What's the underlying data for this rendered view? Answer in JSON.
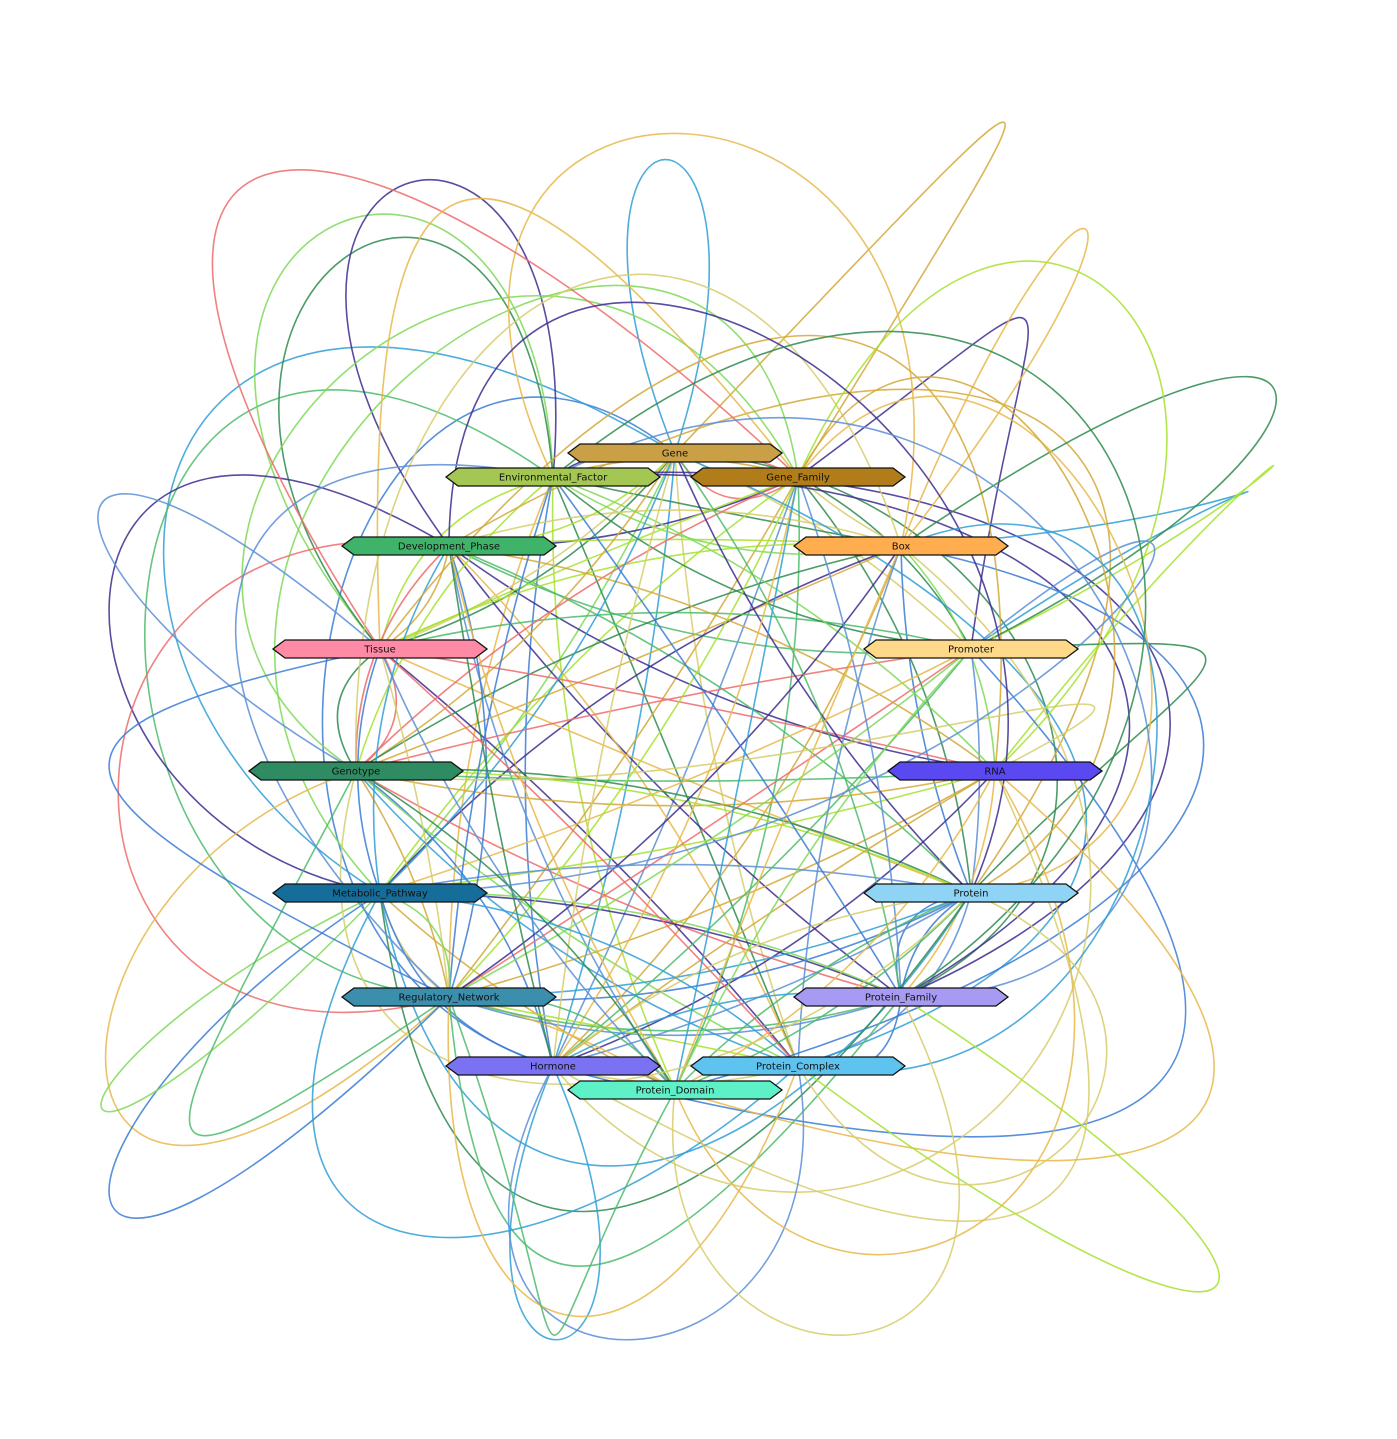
{
  "diagram": {
    "type": "network-graph",
    "node_shape": "hexagon",
    "nodes": [
      {
        "id": "gene",
        "label": "Gene",
        "color": "#c9a046"
      },
      {
        "id": "environmental_factor",
        "label": "Environmental_Factor",
        "color": "#a3c752"
      },
      {
        "id": "gene_family",
        "label": "Gene_Family",
        "color": "#b07d1a"
      },
      {
        "id": "development_phase",
        "label": "Development_Phase",
        "color": "#3fb36a"
      },
      {
        "id": "box",
        "label": "Box",
        "color": "#ffad4f"
      },
      {
        "id": "tissue",
        "label": "Tissue",
        "color": "#ff8aa6"
      },
      {
        "id": "promoter",
        "label": "Promoter",
        "color": "#ffd98a"
      },
      {
        "id": "genotype",
        "label": "Genotype",
        "color": "#2e8b62"
      },
      {
        "id": "rna",
        "label": "RNA",
        "color": "#5a48f0"
      },
      {
        "id": "metabolic_pathway",
        "label": "Metabolic_Pathway",
        "color": "#156d9a"
      },
      {
        "id": "protein",
        "label": "Protein",
        "color": "#8fd3f5"
      },
      {
        "id": "regulatory_network",
        "label": "Regulatory_Network",
        "color": "#3b8fad"
      },
      {
        "id": "protein_family",
        "label": "Protein_Family",
        "color": "#a79af3"
      },
      {
        "id": "hormone",
        "label": "Hormone",
        "color": "#7a72f3"
      },
      {
        "id": "protein_complex",
        "label": "Protein_Complex",
        "color": "#5ec3ee"
      },
      {
        "id": "protein_domain",
        "label": "Protein_Domain",
        "color": "#5ef0c6"
      }
    ],
    "edge_colors": [
      "#2e8b4e",
      "#7ed957",
      "#a6e22e",
      "#3a7bd5",
      "#5b8fd6",
      "#e8b84a",
      "#d4a838",
      "#3c2d8f",
      "#ef6b6b",
      "#4cbb6b",
      "#2f9fd6",
      "#d6cc6a"
    ]
  }
}
